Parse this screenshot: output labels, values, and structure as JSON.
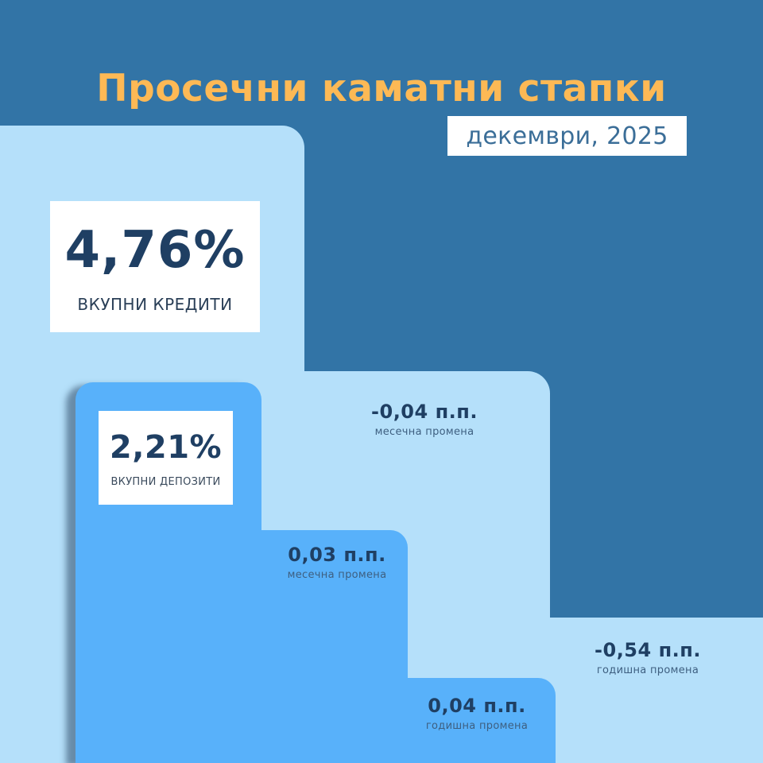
{
  "header": {
    "title": "Просечни каматни стапки",
    "period": "декември, 2025"
  },
  "colors": {
    "background": "#3274A6",
    "loans_bar": "#B5E0FA",
    "deposits_bar": "#58B1FA",
    "title": "#FDB955",
    "value_text": "#1F3F63"
  },
  "loans": {
    "value": "4,76%",
    "label": "ВКУПНИ КРЕДИТИ",
    "monthly_change": {
      "value": "-0,04 п.п.",
      "label": "месечна промена"
    },
    "annual_change": {
      "value": "-0,54 п.п.",
      "label": "годишна промена"
    }
  },
  "deposits": {
    "value": "2,21%",
    "label": "ВКУПНИ ДЕПОЗИТИ",
    "monthly_change": {
      "value": "0,03 п.п.",
      "label": "месечна промена"
    },
    "annual_change": {
      "value": "0,04 п.п.",
      "label": "годишна промена"
    }
  }
}
